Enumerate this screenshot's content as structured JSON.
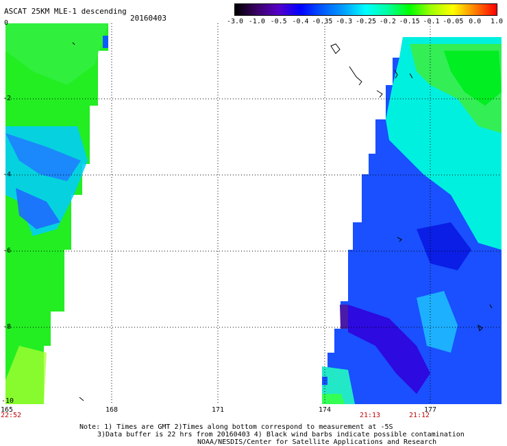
{
  "header": {
    "title": "ASCAT 25KM MLE-1 descending",
    "date": "20160403"
  },
  "colorbar": {
    "labels": [
      "-3.0",
      "-1.0",
      "-0.5",
      "-0.4",
      "-0.35",
      "-0.3",
      "-0.25",
      "-0.2",
      "-0.15",
      "-0.1",
      "-0.05",
      "0.0",
      "1.0"
    ],
    "colors": [
      "#000000",
      "#3b0066",
      "#5500c8",
      "#0000ff",
      "#0058ff",
      "#00a0ff",
      "#00ffff",
      "#00ffa0",
      "#00ff00",
      "#a0ff00",
      "#ffff00",
      "#ff8000",
      "#ff0000"
    ]
  },
  "map": {
    "lon_labels": [
      "165",
      "168",
      "171",
      "174",
      "177"
    ],
    "lat_labels": [
      "0",
      "-2",
      "-4",
      "-6",
      "-8",
      "-10"
    ],
    "lon_range": [
      165,
      179.3
    ],
    "lat_range": [
      0,
      -10
    ]
  },
  "times": [
    "22:52",
    "21:13",
    "21:12"
  ],
  "notes": {
    "line1": "Note: 1) Times are GMT 2)Times along bottom correspond to measurement at -5S",
    "line2": "3)Data buffer is 22 hrs from 20160403 4) Black wind barbs indicate possible contamination",
    "line3": "NOAA/NESDIS/Center for Satellite Applications and Research"
  }
}
